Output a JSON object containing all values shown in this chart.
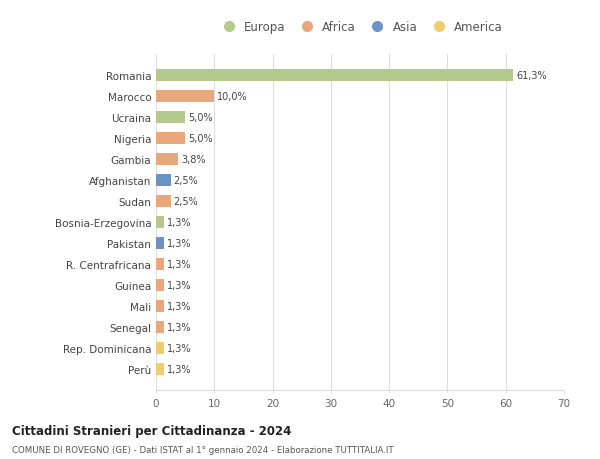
{
  "categories": [
    "Romania",
    "Marocco",
    "Ucraina",
    "Nigeria",
    "Gambia",
    "Afghanistan",
    "Sudan",
    "Bosnia-Erzegovina",
    "Pakistan",
    "R. Centrafricana",
    "Guinea",
    "Mali",
    "Senegal",
    "Rep. Dominicana",
    "Perù"
  ],
  "values": [
    61.3,
    10.0,
    5.0,
    5.0,
    3.8,
    2.5,
    2.5,
    1.3,
    1.3,
    1.3,
    1.3,
    1.3,
    1.3,
    1.3,
    1.3
  ],
  "labels": [
    "61,3%",
    "10,0%",
    "5,0%",
    "5,0%",
    "3,8%",
    "2,5%",
    "2,5%",
    "1,3%",
    "1,3%",
    "1,3%",
    "1,3%",
    "1,3%",
    "1,3%",
    "1,3%",
    "1,3%"
  ],
  "colors": [
    "#b5c98e",
    "#e8a87c",
    "#b5c98e",
    "#e8a87c",
    "#e8a87c",
    "#6a93c4",
    "#e8a87c",
    "#b5c98e",
    "#6a93c4",
    "#e8a87c",
    "#e8a87c",
    "#e8a87c",
    "#e8a87c",
    "#f0cc6e",
    "#f0cc6e"
  ],
  "legend_labels": [
    "Europa",
    "Africa",
    "Asia",
    "America"
  ],
  "legend_colors": [
    "#b5c98e",
    "#e8a87c",
    "#6a93c4",
    "#f0cc6e"
  ],
  "title": "Cittadini Stranieri per Cittadinanza - 2024",
  "subtitle": "COMUNE DI ROVEGNO (GE) - Dati ISTAT al 1° gennaio 2024 - Elaborazione TUTTITALIA.IT",
  "xlim": [
    0,
    70
  ],
  "xticks": [
    0,
    10,
    20,
    30,
    40,
    50,
    60,
    70
  ],
  "background_color": "#ffffff",
  "grid_color": "#dddddd",
  "bar_height": 0.55
}
